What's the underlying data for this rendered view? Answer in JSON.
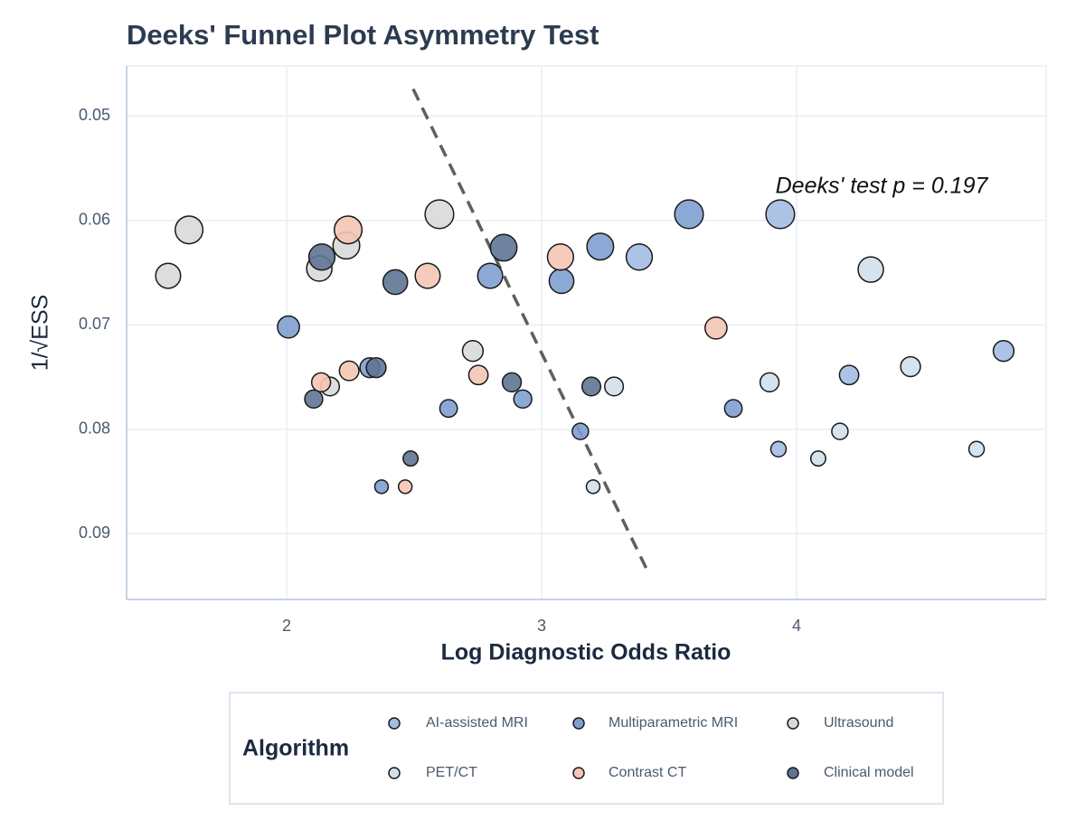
{
  "chart_data": {
    "type": "scatter",
    "title": "Deeks' Funnel Plot Asymmetry Test",
    "x_label": "Log Diagnostic Odds Ratio",
    "y_label": "1/√ESS",
    "annotation": "Deeks' test  p = 0.197",
    "legend_title": "Algorithm",
    "legend_position": "bottom",
    "grid": true,
    "y_reversed": true,
    "xlim": [
      1.372,
      4.979
    ],
    "ylim": [
      0.0452,
      0.0963
    ],
    "xticks": [
      2,
      3,
      4
    ],
    "yticks": [
      0.05,
      0.06,
      0.07,
      0.08,
      0.09
    ],
    "fit_line": {
      "color": "#5f5f5f",
      "x": [
        2.496,
        3.422
      ],
      "y": [
        0.0474,
        0.0939
      ]
    },
    "series": [
      {
        "name": "AI-assisted MRI",
        "color": "#a3bde3",
        "x": [
          3.383,
          3.936,
          4.206,
          3.929,
          4.812
        ],
        "values": [
          0.0635,
          0.0594,
          0.0748,
          0.0819,
          0.0725
        ]
      },
      {
        "name": "Multiparametric MRI",
        "color": "#7f9fcf",
        "x": [
          2.007,
          2.635,
          2.798,
          2.926,
          3.078,
          3.23,
          3.578,
          3.152,
          2.372,
          3.752,
          2.326
        ],
        "values": [
          0.0702,
          0.078,
          0.0653,
          0.0771,
          0.0658,
          0.0625,
          0.0594,
          0.0802,
          0.0855,
          0.078,
          0.0741
        ]
      },
      {
        "name": "Ultrasound",
        "color": "#d9d9d9",
        "x": [
          1.535,
          1.617,
          2.128,
          2.234,
          2.17,
          2.599,
          2.73
        ],
        "values": [
          0.0653,
          0.0609,
          0.0646,
          0.0624,
          0.0759,
          0.0594,
          0.0725
        ]
      },
      {
        "name": "PET/CT",
        "color": "#cfe0ec",
        "x": [
          3.284,
          3.202,
          3.894,
          4.291,
          4.447,
          4.17,
          4.085,
          4.706
        ],
        "values": [
          0.0759,
          0.0855,
          0.0755,
          0.0647,
          0.074,
          0.0802,
          0.0828,
          0.0819
        ]
      },
      {
        "name": "Contrast CT",
        "color": "#f4c7b5",
        "x": [
          2.241,
          2.553,
          2.135,
          2.245,
          2.752,
          2.465,
          3.074,
          3.684
        ],
        "values": [
          0.0609,
          0.0653,
          0.0755,
          0.0744,
          0.0748,
          0.0855,
          0.0635,
          0.0703
        ]
      },
      {
        "name": "Clinical model",
        "color": "#5f7493",
        "x": [
          2.138,
          2.426,
          2.351,
          2.106,
          2.486,
          2.851,
          2.883,
          3.195
        ],
        "values": [
          0.0635,
          0.0659,
          0.0741,
          0.0771,
          0.0828,
          0.0626,
          0.0755,
          0.0759
        ]
      }
    ]
  }
}
